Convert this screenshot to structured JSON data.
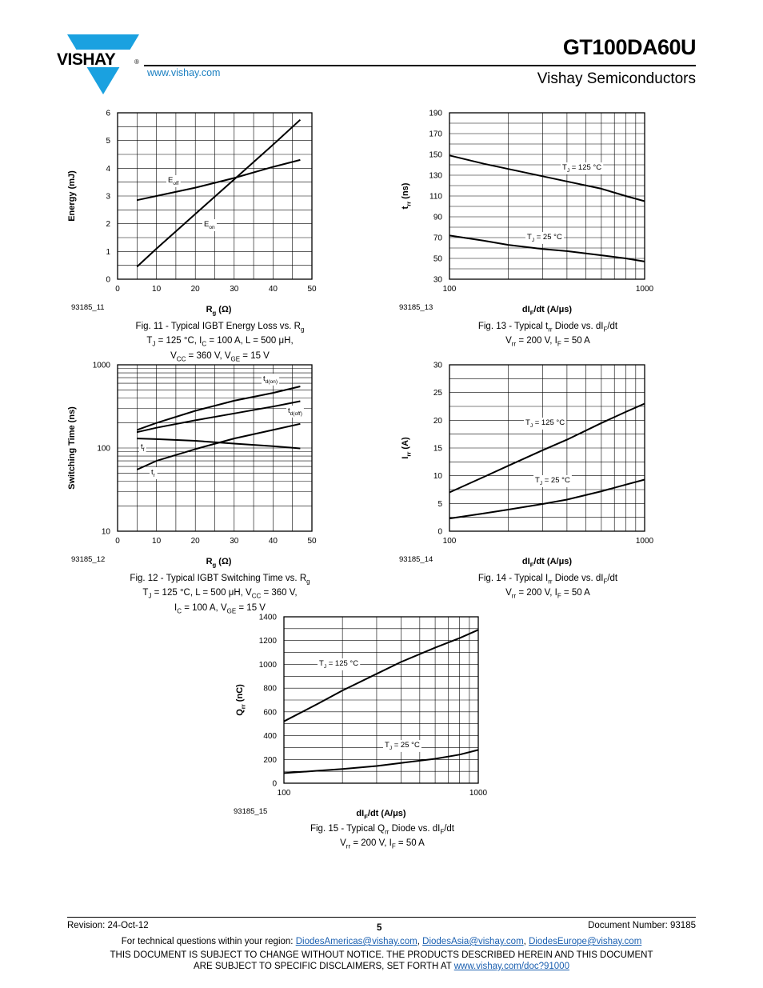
{
  "header": {
    "brand": "VISHAY",
    "reg_mark": "®",
    "part_number": "GT100DA60U",
    "company": "Vishay Semiconductors",
    "website": "www.vishay.com"
  },
  "colors": {
    "logo_blue": "#1aa1e0",
    "link_blue": "#1a5fb0",
    "curve": "#000000"
  },
  "figures": [
    {
      "id": "fig11",
      "figure_id": "93185_11",
      "caption_lines": [
        "Fig. 11 - Typical IGBT Energy Loss vs. R_g",
        "T_J = 125 °C, I_C = 100 A, L = 500 μH,",
        "V_CC = 360 V, V_GE = 15 V"
      ],
      "chart_data": {
        "type": "line",
        "xlabel": "R_g (Ω)",
        "ylabel": "Energy (mJ)",
        "xlim": [
          0,
          50
        ],
        "ylim": [
          0,
          6
        ],
        "xscale": "linear",
        "yscale": "linear",
        "xticks": [
          0,
          10,
          20,
          30,
          40,
          50
        ],
        "yticks": [
          0,
          1,
          2,
          3,
          4,
          5,
          6
        ],
        "grid": true,
        "series": [
          {
            "name": "E_off",
            "x": [
              5,
              10,
              20,
              30,
              40,
              47
            ],
            "y": [
              2.85,
              3.0,
              3.3,
              3.65,
              4.05,
              4.3
            ]
          },
          {
            "name": "E_on",
            "x": [
              5,
              10,
              20,
              30,
              40,
              47
            ],
            "y": [
              0.45,
              1.1,
              2.35,
              3.6,
              4.85,
              5.75
            ]
          }
        ]
      }
    },
    {
      "id": "fig13",
      "figure_id": "93185_13",
      "caption_lines": [
        "Fig. 13 - Typical t_rr Diode vs. dI_F/dt",
        "V_rr = 200 V, I_F = 50 A"
      ],
      "chart_data": {
        "type": "line",
        "xlabel": "dI_F/dt (A/μs)",
        "ylabel": "t_rr (ns)",
        "xlim": [
          100,
          1000
        ],
        "ylim": [
          30,
          190
        ],
        "xscale": "log",
        "yscale": "linear",
        "xticks": [
          100,
          1000
        ],
        "yticks": [
          30,
          50,
          70,
          90,
          110,
          130,
          150,
          170,
          190
        ],
        "grid": true,
        "series": [
          {
            "name": "T_J = 125 °C",
            "x": [
              100,
              150,
              200,
              300,
              400,
              600,
              800,
              1000
            ],
            "y": [
              149,
              141,
              136,
              129,
              124,
              117,
              110,
              105
            ]
          },
          {
            "name": "T_J = 25 °C",
            "x": [
              100,
              150,
              200,
              300,
              400,
              600,
              800,
              1000
            ],
            "y": [
              72,
              67,
              63,
              59,
              57,
              53,
              50,
              47
            ]
          }
        ]
      }
    },
    {
      "id": "fig12",
      "figure_id": "93185_12",
      "caption_lines": [
        "Fig. 12 - Typical IGBT Switching Time vs. R_g",
        "T_J = 125 °C, L = 500 μH, V_CC = 360 V,",
        "I_C = 100 A, V_GE = 15 V"
      ],
      "chart_data": {
        "type": "line",
        "xlabel": "R_g (Ω)",
        "ylabel": "Switching Time (ns)",
        "xlim": [
          0,
          50
        ],
        "ylim": [
          10,
          1000
        ],
        "xscale": "linear",
        "yscale": "log",
        "xticks": [
          0,
          10,
          20,
          30,
          40,
          50
        ],
        "yticks": [
          10,
          100,
          1000
        ],
        "grid": true,
        "series": [
          {
            "name": "t_d(on)",
            "x": [
              5,
              10,
              20,
              30,
              40,
              47
            ],
            "y": [
              165,
              200,
              280,
              370,
              460,
              550
            ]
          },
          {
            "name": "t_d(off)",
            "x": [
              5,
              10,
              20,
              30,
              40,
              47
            ],
            "y": [
              155,
              175,
              215,
              260,
              315,
              365
            ]
          },
          {
            "name": "t_f",
            "x": [
              5,
              10,
              20,
              30,
              40,
              47
            ],
            "y": [
              130,
              128,
              122,
              113,
              105,
              99
            ]
          },
          {
            "name": "t_r",
            "x": [
              5,
              10,
              20,
              30,
              40,
              47
            ],
            "y": [
              55,
              70,
              97,
              130,
              165,
              195
            ]
          }
        ]
      }
    },
    {
      "id": "fig14",
      "figure_id": "93185_14",
      "caption_lines": [
        "Fig. 14 - Typical I_rr Diode vs. dI_F/dt",
        "V_rr = 200 V, I_F = 50 A"
      ],
      "chart_data": {
        "type": "line",
        "xlabel": "dI_F/dt (A/μs)",
        "ylabel": "I_rr (A)",
        "xlim": [
          100,
          1000
        ],
        "ylim": [
          0,
          30
        ],
        "xscale": "log",
        "yscale": "linear",
        "xticks": [
          100,
          1000
        ],
        "yticks": [
          0,
          5,
          10,
          15,
          20,
          25,
          30
        ],
        "grid": true,
        "series": [
          {
            "name": "T_J = 125 °C",
            "x": [
              100,
              150,
              200,
              300,
              400,
              600,
              800,
              1000
            ],
            "y": [
              7,
              9.8,
              11.8,
              14.6,
              16.5,
              19.5,
              21.5,
              23
            ]
          },
          {
            "name": "T_J = 25 °C",
            "x": [
              100,
              150,
              200,
              300,
              400,
              600,
              800,
              1000
            ],
            "y": [
              2.3,
              3.2,
              3.9,
              4.9,
              5.7,
              7.2,
              8.4,
              9.3
            ]
          }
        ]
      }
    },
    {
      "id": "fig15",
      "figure_id": "93185_15",
      "caption_lines": [
        "Fig. 15 - Typical Q_rr Diode vs. dI_F/dt",
        "V_rr = 200 V, I_F = 50 A"
      ],
      "chart_data": {
        "type": "line",
        "xlabel": "dI_F/dt (A/μs)",
        "ylabel": "Q_rr (nC)",
        "xlim": [
          100,
          1000
        ],
        "ylim": [
          0,
          1400
        ],
        "xscale": "log",
        "yscale": "linear",
        "xticks": [
          100,
          1000
        ],
        "yticks": [
          0,
          200,
          400,
          600,
          800,
          1000,
          1200,
          1400
        ],
        "grid": true,
        "series": [
          {
            "name": "T_J = 125 °C",
            "x": [
              100,
              150,
              200,
              300,
              400,
              600,
              800,
              1000
            ],
            "y": [
              520,
              670,
              780,
              920,
              1020,
              1140,
              1220,
              1290
            ]
          },
          {
            "name": "T_J = 25 °C",
            "x": [
              100,
              150,
              200,
              300,
              400,
              600,
              800,
              1000
            ],
            "y": [
              85,
              105,
              120,
              145,
              170,
              205,
              240,
              280
            ]
          }
        ]
      }
    }
  ],
  "footer": {
    "revision": "Revision: 24-Oct-12",
    "page_number": "5",
    "document_number": "Document Number: 93185",
    "contact_prefix": "For technical questions within your region: ",
    "emails": [
      "DiodesAmericas@vishay.com",
      "DiodesAsia@vishay.com",
      "DiodesEurope@vishay.com"
    ],
    "disclaimer_line1": "THIS DOCUMENT IS SUBJECT TO CHANGE WITHOUT NOTICE. THE PRODUCTS DESCRIBED HEREIN AND THIS DOCUMENT",
    "disclaimer_line2_prefix": "ARE SUBJECT TO SPECIFIC DISCLAIMERS, SET FORTH AT ",
    "disclaimer_link": "www.vishay.com/doc?91000"
  }
}
